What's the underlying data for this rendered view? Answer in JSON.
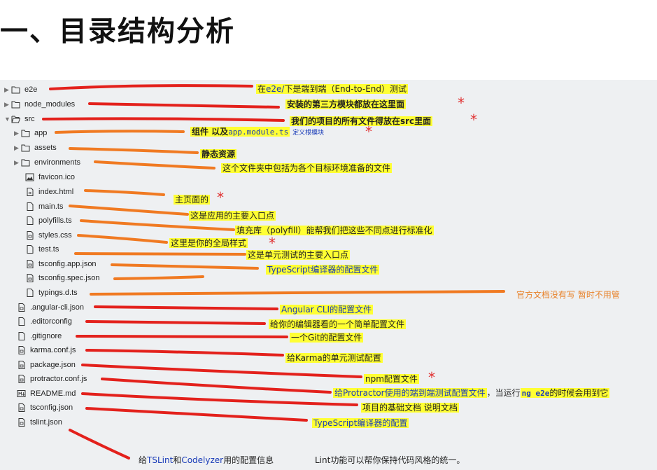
{
  "heading": "一、目录结构分析",
  "tree": [
    {
      "label": "e2e",
      "type": "folder",
      "expand": "collapsed"
    },
    {
      "label": "node_modules",
      "type": "folder",
      "expand": "collapsed"
    },
    {
      "label": "src",
      "type": "folder",
      "expand": "expanded"
    },
    {
      "label": "app",
      "type": "folder",
      "expand": "collapsed"
    },
    {
      "label": "assets",
      "type": "folder",
      "expand": "collapsed"
    },
    {
      "label": "environments",
      "type": "folder",
      "expand": "collapsed"
    },
    {
      "label": "favicon.ico",
      "type": "image"
    },
    {
      "label": "index.html",
      "type": "file"
    },
    {
      "label": "main.ts",
      "type": "file"
    },
    {
      "label": "polyfills.ts",
      "type": "file"
    },
    {
      "label": "styles.css",
      "type": "file"
    },
    {
      "label": "test.ts",
      "type": "file"
    },
    {
      "label": "tsconfig.app.json",
      "type": "file"
    },
    {
      "label": "tsconfig.spec.json",
      "type": "file"
    },
    {
      "label": "typings.d.ts",
      "type": "file"
    },
    {
      "label": ".angular-cli.json",
      "type": "file"
    },
    {
      "label": ".editorconfig",
      "type": "file"
    },
    {
      "label": ".gitignore",
      "type": "file"
    },
    {
      "label": "karma.conf.js",
      "type": "file"
    },
    {
      "label": "package.json",
      "type": "file"
    },
    {
      "label": "protractor.conf.js",
      "type": "file"
    },
    {
      "label": "README.md",
      "type": "file"
    },
    {
      "label": "tsconfig.json",
      "type": "file"
    },
    {
      "label": "tslint.json",
      "type": "file"
    }
  ],
  "notes": {
    "e2e_a": "在",
    "e2e_b": "e2e/",
    "e2e_c": "下是端到端（End-to-End）测试",
    "node_modules": "安装的第三方模块都放在这里面",
    "src": "我们的项目的所有文件得放在src里面",
    "app_a": "组件  以及",
    "app_b": "app.module.ts",
    "app_c": "定义根模块",
    "assets": "静态资源",
    "environments": "这个文件夹中包括为各个目标环境准备的文件",
    "index": "主页面的",
    "main": "这是应用的主要入口点",
    "polyfills": "填充库（polyfill）能帮我们把这些不同点进行标准化",
    "styles": "这里是你的全局样式",
    "test": "这是单元测试的主要入口点",
    "tsconfig_app": "TypeScript编译器的配置文件",
    "typings": "官方文档没有写  暂时不用管",
    "angular_cli": "Angular CLI的配置文件",
    "editorconfig": "给你的编辑器看的一个简单配置文件",
    "gitignore": "一个Git的配置文件",
    "karma": "给Karma的单元测试配置",
    "package": "npm配置文件",
    "protractor_a": "给Protractor使用的端到端测试配置文件",
    "protractor_b": "，当运行",
    "protractor_c": "ng e2e",
    "protractor_d": "的时候会用到它",
    "readme": "项目的基础文档 说明文档",
    "tsconfig": "TypeScript编译器的配置",
    "tslint_a": "给",
    "tslint_b": "TSLint",
    "tslint_c": "和",
    "tslint_d": "Codelyzer",
    "tslint_e": "用的配置信息",
    "tslint_f": "Lint功能可以帮你保持代码风格的统一。"
  },
  "star": "*",
  "colors": {
    "red_line": "#e3211c",
    "orange_line": "#f07a22",
    "highlight": "#ffff33",
    "star": "#e03030",
    "panel": "#eef0f2"
  }
}
